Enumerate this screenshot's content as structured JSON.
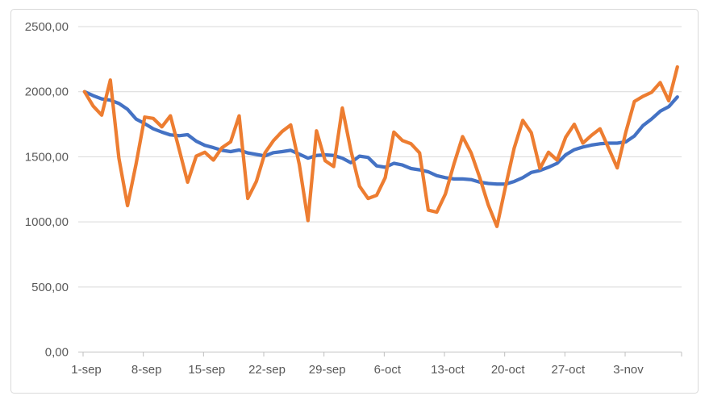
{
  "chart": {
    "title": "",
    "y_axis_labels": [
      "2500,00",
      "2000,00",
      "1500,00",
      "1000,00",
      "500,00",
      "0,00"
    ],
    "x_axis_labels": [
      "1-sep",
      "8-sep",
      "15-sep",
      "22-sep",
      "29-sep",
      "6-oct",
      "13-oct",
      "20-oct",
      "27-oct",
      "3-nov"
    ]
  },
  "chart_data": {
    "type": "line",
    "title": "",
    "xlabel": "",
    "ylabel": "",
    "x_axis": {
      "kind": "daily dates",
      "start_label": "1-sep",
      "end_label_implied": "9-nov",
      "num_points": 70,
      "tick_labels": [
        "1-sep",
        "8-sep",
        "15-sep",
        "22-sep",
        "29-sep",
        "6-oct",
        "13-oct",
        "20-oct",
        "27-oct",
        "3-nov"
      ],
      "tick_day_indices": [
        0,
        7,
        14,
        21,
        28,
        35,
        42,
        49,
        56,
        63
      ]
    },
    "ylim": [
      0,
      2500
    ],
    "y_tick_step": 500,
    "y_number_format": "comma-decimal (e.g. 2500,00)",
    "grid": true,
    "legend_position": "none",
    "series": [
      {
        "name": "series-blue-smoothed",
        "color": "#4472C4",
        "values": [
          2000,
          1970,
          1945,
          1935,
          1910,
          1865,
          1790,
          1755,
          1715,
          1690,
          1668,
          1662,
          1670,
          1620,
          1588,
          1570,
          1550,
          1540,
          1552,
          1530,
          1518,
          1507,
          1532,
          1540,
          1550,
          1520,
          1490,
          1510,
          1515,
          1510,
          1490,
          1455,
          1505,
          1495,
          1430,
          1420,
          1450,
          1437,
          1410,
          1400,
          1385,
          1355,
          1340,
          1330,
          1330,
          1325,
          1305,
          1295,
          1290,
          1290,
          1310,
          1340,
          1380,
          1395,
          1420,
          1450,
          1515,
          1555,
          1575,
          1590,
          1600,
          1605,
          1605,
          1615,
          1660,
          1740,
          1790,
          1850,
          1885,
          1960
        ]
      },
      {
        "name": "series-orange-daily",
        "color": "#ED7D31",
        "values": [
          2000,
          1890,
          1820,
          2090,
          1490,
          1125,
          1445,
          1805,
          1795,
          1730,
          1815,
          1560,
          1305,
          1505,
          1535,
          1475,
          1570,
          1615,
          1815,
          1180,
          1310,
          1530,
          1625,
          1695,
          1745,
          1440,
          1010,
          1700,
          1470,
          1425,
          1875,
          1550,
          1275,
          1180,
          1205,
          1340,
          1690,
          1625,
          1600,
          1530,
          1090,
          1075,
          1215,
          1445,
          1655,
          1530,
          1340,
          1130,
          965,
          1270,
          1565,
          1780,
          1685,
          1410,
          1535,
          1475,
          1650,
          1750,
          1605,
          1665,
          1715,
          1565,
          1415,
          1690,
          1925,
          1965,
          1995,
          2070,
          1930,
          2190
        ]
      }
    ]
  },
  "colors": {
    "series_blue": "#4472C4",
    "series_orange": "#ED7D31",
    "gridline": "#D9D9D9",
    "axis_line": "#BFBFBF",
    "axis_text": "#595959",
    "frame_border": "#D9D9D9",
    "background": "#FFFFFF"
  }
}
